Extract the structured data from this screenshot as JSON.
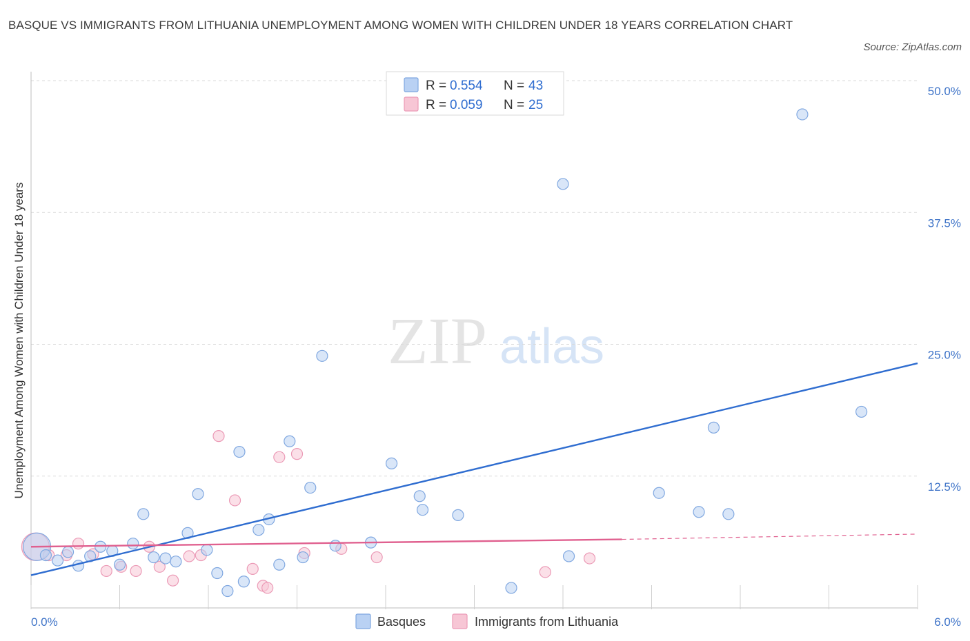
{
  "title": "BASQUE VS IMMIGRANTS FROM LITHUANIA UNEMPLOYMENT AMONG WOMEN WITH CHILDREN UNDER 18 YEARS CORRELATION CHART",
  "source": "Source: ZipAtlas.com",
  "watermark": {
    "zip": "ZIP",
    "atlas": "atlas"
  },
  "colors": {
    "blue": "#2f6dd0",
    "pink": "#e0608f",
    "blue_fill": "#b9d1f3",
    "pink_fill": "#f7c6d5"
  },
  "legend": {
    "rows": [
      {
        "r_label": "R = ",
        "r_value": "0.554",
        "n_label": "N = ",
        "n_value": "43"
      },
      {
        "r_label": "R = ",
        "r_value": "0.059",
        "n_label": "N = ",
        "n_value": "25"
      }
    ]
  },
  "chart_data": {
    "type": "scatter",
    "title": "BASQUE VS IMMIGRANTS FROM LITHUANIA UNEMPLOYMENT AMONG WOMEN WITH CHILDREN UNDER 18 YEARS CORRELATION CHART",
    "xlabel": "",
    "ylabel": "Unemployment Among Women with Children Under 18 years",
    "xlim": [
      0,
      6
    ],
    "ylim": [
      0,
      50
    ],
    "x_tick_labels": [
      "0.0%",
      "6.0%"
    ],
    "y_tick_labels": [
      "12.5%",
      "25.0%",
      "37.5%",
      "50.0%"
    ],
    "y_ticks": [
      12.5,
      25,
      37.5,
      50
    ],
    "grid": true,
    "legend_position": "top-center",
    "series": [
      {
        "name": "Basques",
        "color": "#2f6dd0",
        "r": 0.554,
        "n": 43,
        "trend": {
          "x": [
            0,
            6
          ],
          "y": [
            3.1,
            23.2
          ],
          "dashed_from": null
        },
        "points": [
          [
            0.04,
            5.8,
            1
          ],
          [
            0.1,
            5.0,
            0
          ],
          [
            0.18,
            4.5,
            0
          ],
          [
            0.25,
            5.3,
            0
          ],
          [
            0.32,
            4.0,
            0
          ],
          [
            0.4,
            4.9,
            0
          ],
          [
            0.47,
            5.8,
            0
          ],
          [
            0.55,
            5.4,
            0
          ],
          [
            0.6,
            4.1,
            0
          ],
          [
            0.69,
            6.1,
            0
          ],
          [
            0.76,
            8.9,
            0
          ],
          [
            0.83,
            4.8,
            0
          ],
          [
            0.91,
            4.7,
            0
          ],
          [
            0.98,
            4.4,
            0
          ],
          [
            1.06,
            7.1,
            0
          ],
          [
            1.13,
            10.8,
            0
          ],
          [
            1.19,
            5.5,
            0
          ],
          [
            1.26,
            3.3,
            0
          ],
          [
            1.33,
            1.6,
            0
          ],
          [
            1.41,
            14.8,
            0
          ],
          [
            1.44,
            2.5,
            0
          ],
          [
            1.54,
            7.4,
            0
          ],
          [
            1.61,
            8.4,
            0
          ],
          [
            1.68,
            4.1,
            0
          ],
          [
            1.75,
            15.8,
            0
          ],
          [
            1.84,
            4.8,
            0
          ],
          [
            1.89,
            11.4,
            0
          ],
          [
            1.97,
            23.9,
            0
          ],
          [
            2.06,
            5.9,
            0
          ],
          [
            2.3,
            6.2,
            0
          ],
          [
            2.44,
            13.7,
            0
          ],
          [
            2.63,
            10.6,
            0
          ],
          [
            2.65,
            9.3,
            0
          ],
          [
            2.89,
            8.8,
            0
          ],
          [
            3.25,
            1.9,
            0
          ],
          [
            3.6,
            40.2,
            0
          ],
          [
            3.64,
            4.9,
            0
          ],
          [
            4.25,
            10.9,
            0
          ],
          [
            4.52,
            9.1,
            0
          ],
          [
            4.62,
            17.1,
            0
          ],
          [
            4.72,
            8.9,
            0
          ],
          [
            5.22,
            46.8,
            0
          ],
          [
            5.62,
            18.6,
            0
          ]
        ]
      },
      {
        "name": "Immigrants from Lithuania",
        "color": "#e0608f",
        "r": 0.059,
        "n": 25,
        "trend": {
          "x": [
            0,
            4.0,
            6
          ],
          "y": [
            5.8,
            6.5,
            7.0
          ],
          "dashed_from": 4.0
        },
        "points": [
          [
            0.03,
            5.8,
            1
          ],
          [
            0.12,
            5.0,
            0
          ],
          [
            0.24,
            5.0,
            0
          ],
          [
            0.32,
            6.1,
            0
          ],
          [
            0.42,
            5.1,
            0
          ],
          [
            0.51,
            3.5,
            0
          ],
          [
            0.61,
            3.9,
            0
          ],
          [
            0.71,
            3.5,
            0
          ],
          [
            0.8,
            5.8,
            0
          ],
          [
            0.87,
            3.9,
            0
          ],
          [
            0.96,
            2.6,
            0
          ],
          [
            1.07,
            4.9,
            0
          ],
          [
            1.15,
            5.0,
            0
          ],
          [
            1.27,
            16.3,
            0
          ],
          [
            1.38,
            10.2,
            0
          ],
          [
            1.5,
            3.7,
            0
          ],
          [
            1.57,
            2.1,
            0
          ],
          [
            1.6,
            1.9,
            0
          ],
          [
            1.68,
            14.3,
            0
          ],
          [
            1.8,
            14.6,
            0
          ],
          [
            1.85,
            5.2,
            0
          ],
          [
            2.1,
            5.6,
            0
          ],
          [
            2.34,
            4.8,
            0
          ],
          [
            3.48,
            3.4,
            0
          ],
          [
            3.78,
            4.7,
            0
          ]
        ]
      }
    ]
  }
}
